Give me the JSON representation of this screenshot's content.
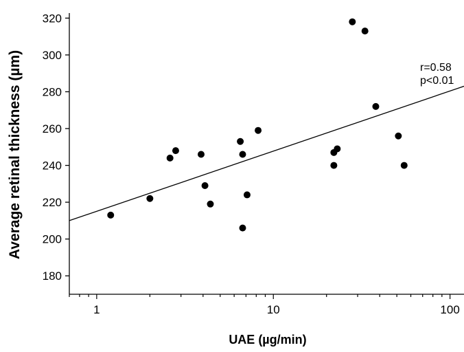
{
  "chart_data": {
    "type": "scatter",
    "title": "",
    "xlabel": "UAE (µg/min)",
    "ylabel": "Average retinal thickness (µm)",
    "x_scale": "log",
    "xlim": [
      0.7,
      120
    ],
    "ylim": [
      170,
      322
    ],
    "x_ticks": [
      1,
      10,
      100
    ],
    "x_tick_labels": [
      "1",
      "10",
      "100"
    ],
    "y_ticks": [
      180,
      200,
      220,
      240,
      260,
      280,
      300,
      320
    ],
    "y_tick_labels": [
      "180",
      "200",
      "220",
      "240",
      "260",
      "280",
      "300",
      "320"
    ],
    "grid": false,
    "legend": null,
    "points": [
      {
        "x": 1.2,
        "y": 213
      },
      {
        "x": 2.0,
        "y": 222
      },
      {
        "x": 2.6,
        "y": 244
      },
      {
        "x": 2.8,
        "y": 248
      },
      {
        "x": 3.9,
        "y": 246
      },
      {
        "x": 4.1,
        "y": 229
      },
      {
        "x": 4.4,
        "y": 219
      },
      {
        "x": 6.5,
        "y": 253
      },
      {
        "x": 6.7,
        "y": 246
      },
      {
        "x": 6.7,
        "y": 206
      },
      {
        "x": 7.1,
        "y": 224
      },
      {
        "x": 8.2,
        "y": 259
      },
      {
        "x": 22,
        "y": 247
      },
      {
        "x": 22,
        "y": 240
      },
      {
        "x": 23,
        "y": 249
      },
      {
        "x": 28,
        "y": 318
      },
      {
        "x": 33,
        "y": 313
      },
      {
        "x": 38,
        "y": 272
      },
      {
        "x": 51,
        "y": 256
      },
      {
        "x": 55,
        "y": 240
      }
    ],
    "fit_line": {
      "x": [
        0.7,
        120
      ],
      "y": [
        210,
        283
      ]
    },
    "annotations": [
      "r=0.58",
      "p<0.01"
    ],
    "marker_color": "#000000",
    "line_color": "#000000"
  }
}
